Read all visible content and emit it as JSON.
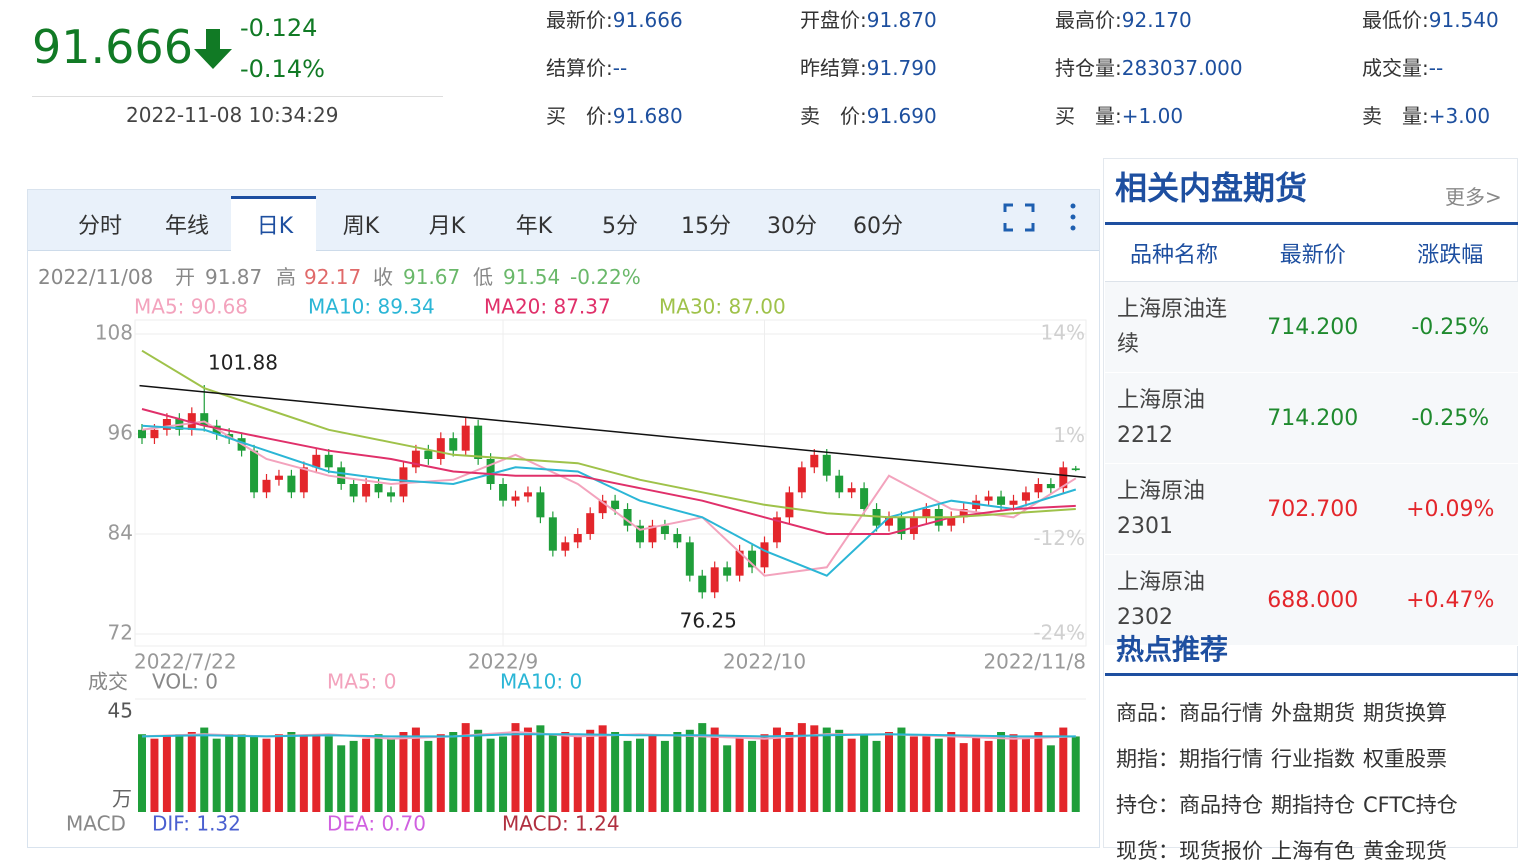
{
  "quote": {
    "price": "91.666",
    "change": "-0.124",
    "change_pct": "-0.14%",
    "time": "2022-11-08 10:34:29"
  },
  "fields": [
    {
      "label": "最新价:",
      "value": "91.666"
    },
    {
      "label": "开盘价:",
      "value": "91.870"
    },
    {
      "label": "最高价:",
      "value": "92.170"
    },
    {
      "label": "最低价:",
      "value": "91.540"
    },
    {
      "label": "结算价:",
      "value": "--"
    },
    {
      "label": "昨结算:",
      "value": "91.790"
    },
    {
      "label": "持仓量:",
      "value": "283037.000"
    },
    {
      "label": "成交量:",
      "value": "--"
    },
    {
      "label": "买　价:",
      "value": "91.680"
    },
    {
      "label": "卖　价:",
      "value": "91.690"
    },
    {
      "label": "买　量:",
      "value": "+1.00"
    },
    {
      "label": "卖　量:",
      "value": "+3.00"
    }
  ],
  "tabs": [
    "分时",
    "年线",
    "日K",
    "周K",
    "月K",
    "年K",
    "5分",
    "15分",
    "30分",
    "60分"
  ],
  "active_tab": 2,
  "chart_data": {
    "type": "candlestick",
    "date": "2022/11/08",
    "open_label": "开",
    "high_label": "高",
    "close_label": "收",
    "low_label": "低",
    "change": "-0.22%",
    "open": [
      96.5,
      95.5,
      96.5,
      97.8,
      96.5,
      98.5,
      97,
      96,
      95.5,
      94,
      89,
      90.5,
      91,
      89,
      92,
      93.5,
      92,
      90,
      88.5,
      90,
      89,
      88.5,
      92,
      94,
      93,
      95.5,
      94,
      97,
      93,
      90,
      88,
      88.5,
      89,
      86,
      82,
      83,
      84,
      86.5,
      88,
      87,
      85,
      83,
      85,
      84,
      83,
      79,
      77,
      80,
      79,
      82,
      80,
      83,
      86,
      89,
      92,
      93.5,
      91,
      89,
      89.5,
      87,
      85,
      86,
      84,
      86,
      87,
      85,
      86,
      87,
      88,
      88.5,
      87.5,
      88,
      89,
      90,
      89.5,
      91.87
    ],
    "high": [
      97.2,
      97.2,
      98.5,
      98.5,
      99.2,
      101.88,
      97.7,
      96.7,
      96.2,
      94.7,
      91.2,
      91.7,
      91.7,
      92.7,
      94.2,
      94.2,
      92.7,
      90.7,
      90.7,
      90.7,
      89.7,
      92.7,
      94.7,
      94.7,
      96.2,
      96.2,
      98,
      97.7,
      93.7,
      90.7,
      89.2,
      89.7,
      89.7,
      86.7,
      83.7,
      84.7,
      87.2,
      88.7,
      88.7,
      87.7,
      85.7,
      85.7,
      85.7,
      84.7,
      83.7,
      79.7,
      80.7,
      80.7,
      82.7,
      82.7,
      83.7,
      86.7,
      89.7,
      92.7,
      94.2,
      94.2,
      91.7,
      90.2,
      90.2,
      87.7,
      86.7,
      86.7,
      86.7,
      87.7,
      87.7,
      86.7,
      87.7,
      88.7,
      89.2,
      89.2,
      88.7,
      89.7,
      90.7,
      90.7,
      92.7,
      92.17
    ],
    "low": [
      94.8,
      94.8,
      95.8,
      95.8,
      95.8,
      96.3,
      95.3,
      94.8,
      93.3,
      88.3,
      88.3,
      89.8,
      88.3,
      88.3,
      91.3,
      91.3,
      89.3,
      87.8,
      87.8,
      88.3,
      87.8,
      87.8,
      91.3,
      92.3,
      92.3,
      93.3,
      93.3,
      92.3,
      89.3,
      87.3,
      87.3,
      87.8,
      85.3,
      81.3,
      81.3,
      82.3,
      83.3,
      85.8,
      86.3,
      84.3,
      82.3,
      82.3,
      83.3,
      82.3,
      78.3,
      76.25,
      76.3,
      78.3,
      78.3,
      79.3,
      79.3,
      82.3,
      85.3,
      88.3,
      91.3,
      90.3,
      88.3,
      88.3,
      86.3,
      84.3,
      84.3,
      83.3,
      83.3,
      85.3,
      84.3,
      84.3,
      85.3,
      86.3,
      87.3,
      86.8,
      86.8,
      87.3,
      88.3,
      88.8,
      88.8,
      91.54
    ],
    "close": [
      95.5,
      96.5,
      97.8,
      96.5,
      98.5,
      97,
      96,
      95.5,
      94,
      89,
      90.5,
      91,
      89,
      92,
      93.5,
      92,
      90,
      88.5,
      90,
      89,
      88.5,
      92,
      94,
      93,
      95.5,
      94,
      97,
      93,
      90,
      88,
      88.5,
      89,
      86,
      82,
      83,
      84,
      86.5,
      88,
      87,
      85,
      83,
      85,
      84,
      83,
      79,
      77,
      80,
      79,
      82,
      80,
      83,
      86,
      89,
      92,
      93.5,
      91,
      89,
      89.5,
      87,
      85,
      86,
      84,
      86,
      87,
      85,
      86,
      87,
      88,
      88.5,
      87.5,
      88,
      89,
      90,
      89.5,
      92,
      91.67
    ],
    "up_color": "#e3262b",
    "down_color": "#1f9e3a",
    "ylim": [
      72,
      108
    ],
    "yticks": [
      72,
      84,
      96,
      108
    ],
    "y2lim": [
      -24,
      14
    ],
    "y2ticks": [
      {
        "value": 14,
        "label": "14%"
      },
      {
        "value": 1,
        "label": "1%"
      },
      {
        "value": -12,
        "label": "-12%"
      },
      {
        "value": -24,
        "label": "-24%"
      }
    ],
    "xlabels": [
      {
        "index": 0,
        "label": "2022/7/22"
      },
      {
        "index": 29,
        "label": "2022/9"
      },
      {
        "index": 50,
        "label": "2022/10"
      },
      {
        "index": 75,
        "label": "2022/11/8"
      }
    ],
    "ma_x": [
      0,
      5,
      10,
      15,
      20,
      25,
      30,
      35,
      40,
      45,
      50,
      55,
      60,
      65,
      70,
      75
    ],
    "ma": [
      {
        "label": "MA5: 90.68",
        "color": "#f3a3bd",
        "values": [
          96.5,
          97.5,
          93,
          91,
          90,
          90.5,
          93.5,
          90,
          84.5,
          86,
          79,
          80,
          91,
          87,
          86,
          90.68
        ]
      },
      {
        "label": "MA10: 89.34",
        "color": "#2bb6d6",
        "values": [
          97,
          96.5,
          94,
          91.5,
          90.5,
          90,
          92,
          91.5,
          88,
          86,
          82,
          79,
          86,
          88,
          87,
          89.34
        ]
      },
      {
        "label": "MA20: 87.37",
        "color": "#e0306a",
        "values": [
          99,
          97,
          95.5,
          94,
          93,
          91.5,
          91,
          91,
          89.5,
          88,
          86,
          84,
          84,
          86,
          87,
          87.37
        ]
      },
      {
        "label": "MA30: 87.00",
        "color": "#9fc24a",
        "values": [
          106,
          101.5,
          99,
          96.5,
          95,
          93.5,
          93,
          92.5,
          90.5,
          89,
          87.5,
          86.5,
          86,
          86,
          86.5,
          87
        ]
      }
    ],
    "trendline": {
      "x": [
        -0.2,
        75.8
      ],
      "values": [
        101.8,
        90.8
      ]
    },
    "volume": {
      "title": "成交",
      "labels": [
        "VOL: 0",
        "MA5: 0",
        "MA10: 0"
      ],
      "ylim": [
        0,
        45
      ],
      "yticks": [
        45
      ],
      "unit": "万",
      "values": [
        35,
        33,
        34,
        35,
        36,
        38,
        33,
        35,
        35,
        34,
        33,
        35,
        36,
        34,
        35,
        34,
        30,
        32,
        33,
        35,
        33,
        36,
        38,
        32,
        35,
        36,
        40,
        37,
        33,
        34,
        40,
        38,
        39,
        35,
        36,
        34,
        37,
        39,
        36,
        32,
        33,
        35,
        32,
        36,
        37,
        40,
        38,
        30,
        34,
        32,
        35,
        38,
        36,
        40,
        39,
        38,
        37,
        33,
        35,
        32,
        36,
        38,
        34,
        35,
        33,
        36,
        31,
        34,
        32,
        36,
        35,
        33,
        36,
        30,
        38,
        34
      ],
      "ma": [
        {
          "color": "#f3a3bd",
          "values": [
            34,
            35,
            34,
            35,
            33,
            34,
            36,
            34,
            35,
            34,
            33,
            35,
            35,
            34,
            33,
            34
          ]
        },
        {
          "color": "#2bb6d6",
          "values": [
            34,
            34.5,
            34,
            34.5,
            34,
            34,
            35,
            35,
            34.5,
            34.5,
            34,
            34.5,
            35,
            34.5,
            34,
            34
          ]
        }
      ]
    },
    "macd": {
      "title": "MACD",
      "labels": [
        "DIF: 1.32",
        "DEA: 0.70",
        "MACD: 1.24"
      ]
    }
  },
  "related": {
    "title": "相关内盘期货",
    "more": "更多>",
    "headers": [
      "品种名称",
      "最新价",
      "涨跌幅"
    ],
    "rows": [
      [
        "上海原油连续",
        "714.200",
        "-0.25%"
      ],
      [
        "上海原油2212",
        "714.200",
        "-0.25%"
      ],
      [
        "上海原油2301",
        "702.700",
        "+0.09%"
      ],
      [
        "上海原油2302",
        "688.000",
        "+0.47%"
      ]
    ]
  },
  "hot": {
    "title": "热点推荐",
    "rows": [
      {
        "label": "商品：",
        "links": [
          "商品行情",
          "外盘期货",
          "期货换算"
        ]
      },
      {
        "label": "期指：",
        "links": [
          "期指行情",
          "行业指数",
          "权重股票"
        ]
      },
      {
        "label": "持仓：",
        "links": [
          "商品持仓",
          "期指持仓",
          "CFTC持仓"
        ]
      },
      {
        "label": "现货：",
        "links": [
          "现货报价",
          "上海有色",
          "黄金现货"
        ]
      }
    ]
  }
}
